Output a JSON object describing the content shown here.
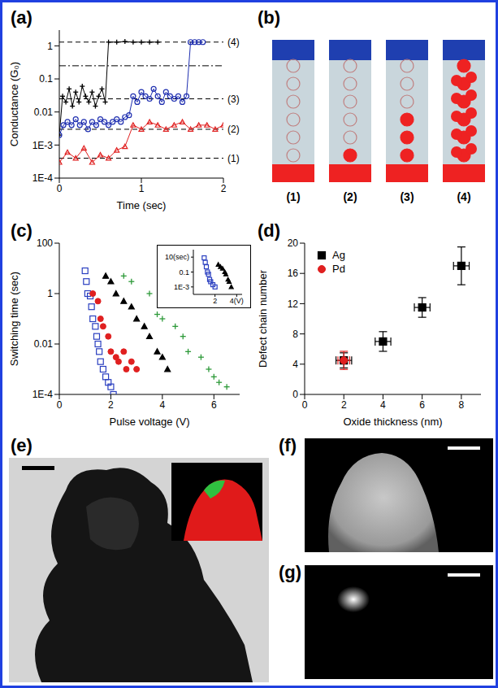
{
  "chart_data": [
    {
      "panel": "(a)",
      "type": "line",
      "x_label": "Time (sec)",
      "y_label": "Conductance (G₀)",
      "log": "y",
      "xlim": [
        0,
        2
      ],
      "xticks": [
        0,
        1,
        2
      ],
      "ylim": [
        0.0001,
        3
      ],
      "yticks": [
        {
          "value": 0.0001,
          "label": "1E-4"
        },
        {
          "value": 0.001,
          "label": "1E-3"
        },
        0.01,
        0.1,
        1
      ],
      "levels": [
        {
          "value": 0.0004,
          "label": "(1)"
        },
        {
          "value": 0.003,
          "label": "(2)"
        },
        {
          "value": 0.025,
          "label": "(3)"
        },
        {
          "value": 0.25
        },
        {
          "value": 1.3,
          "label": "(4)"
        }
      ],
      "series": [
        {
          "color": "#000000",
          "marker": "cross",
          "x": [
            0,
            0.04,
            0.08,
            0.12,
            0.16,
            0.2,
            0.24,
            0.28,
            0.32,
            0.36,
            0.4,
            0.44,
            0.48,
            0.52,
            0.56,
            0.6,
            0.7,
            0.8,
            0.9,
            1.0,
            1.1,
            1.2
          ],
          "values": [
            0.002,
            0.03,
            0.02,
            0.05,
            0.015,
            0.04,
            0.02,
            0.06,
            0.03,
            0.02,
            0.04,
            0.015,
            0.03,
            0.05,
            0.02,
            1.3,
            1.3,
            1.35,
            1.3,
            1.3,
            1.3,
            1.3
          ]
        },
        {
          "color": "#1f2fb0",
          "marker": "open_circle",
          "x": [
            0,
            0.05,
            0.1,
            0.15,
            0.2,
            0.25,
            0.3,
            0.35,
            0.4,
            0.45,
            0.5,
            0.55,
            0.6,
            0.65,
            0.7,
            0.75,
            0.8,
            0.85,
            0.9,
            0.95,
            1.0,
            1.05,
            1.1,
            1.15,
            1.2,
            1.25,
            1.3,
            1.35,
            1.4,
            1.45,
            1.5,
            1.55,
            1.6,
            1.65,
            1.7,
            1.75
          ],
          "values": [
            0.002,
            0.004,
            0.005,
            0.004,
            0.006,
            0.004,
            0.005,
            0.003,
            0.005,
            0.004,
            0.006,
            0.005,
            0.004,
            0.005,
            0.006,
            0.005,
            0.007,
            0.008,
            0.03,
            0.02,
            0.04,
            0.03,
            0.025,
            0.05,
            0.03,
            0.02,
            0.04,
            0.03,
            0.025,
            0.03,
            0.02,
            0.03,
            1.3,
            1.3,
            1.3,
            1.3
          ]
        },
        {
          "color": "#e02020",
          "marker": "open_triangle",
          "x": [
            0,
            0.1,
            0.2,
            0.3,
            0.4,
            0.5,
            0.6,
            0.7,
            0.8,
            0.9,
            1.0,
            1.1,
            1.2,
            1.3,
            1.4,
            1.5,
            1.6,
            1.7,
            1.8,
            1.9,
            2.0
          ],
          "values": [
            0.0003,
            0.0006,
            0.0004,
            0.0008,
            0.0003,
            0.0005,
            0.0004,
            0.0007,
            0.0009,
            0.004,
            0.003,
            0.005,
            0.004,
            0.003,
            0.004,
            0.005,
            0.003,
            0.004,
            0.004,
            0.003,
            0.004
          ]
        }
      ]
    },
    {
      "panel": "(c)",
      "type": "scatter",
      "x_label": "Pulse voltage (V)",
      "y_label": "Switching time (sec)",
      "log": "y",
      "xlim": [
        0,
        7
      ],
      "xticks": [
        0,
        2,
        4,
        6
      ],
      "ylim": [
        0.0001,
        100
      ],
      "yticks": [
        {
          "value": 0.0001,
          "label": "1E-4"
        },
        0.01,
        1,
        100
      ],
      "series": [
        {
          "color": "#2a3fc0",
          "marker": "open_square",
          "x": [
            1.0,
            1.05,
            1.1,
            1.2,
            1.25,
            1.3,
            1.4,
            1.45,
            1.5,
            1.55,
            1.6,
            1.7,
            1.8,
            1.9,
            2.0,
            2.1
          ],
          "values": [
            8,
            3,
            1,
            0.8,
            0.3,
            0.1,
            0.05,
            0.02,
            0.01,
            0.005,
            0.002,
            0.001,
            0.0005,
            0.0003,
            0.0002,
            0.0001
          ]
        },
        {
          "color": "#e02020",
          "marker": "circle",
          "x": [
            1.3,
            1.5,
            1.6,
            1.7,
            1.9,
            2.0,
            2.2,
            2.3,
            2.5,
            2.6,
            2.8,
            3.0
          ],
          "values": [
            1,
            0.5,
            0.1,
            0.05,
            0.02,
            0.005,
            0.003,
            0.002,
            0.005,
            0.001,
            0.002,
            0.001
          ]
        },
        {
          "color": "#000000",
          "marker": "triangle",
          "x": [
            1.8,
            2.0,
            2.2,
            2.5,
            2.8,
            3.0,
            3.3,
            3.5,
            3.8,
            4.0,
            4.2
          ],
          "values": [
            5,
            3,
            1,
            0.5,
            0.3,
            0.1,
            0.05,
            0.02,
            0.005,
            0.003,
            0.001
          ]
        },
        {
          "color": "#2e9a3a",
          "marker": "cross",
          "x": [
            2.5,
            2.8,
            3.5,
            3.8,
            4.0,
            4.5,
            4.8,
            5.0,
            5.5,
            5.8,
            6.0,
            6.2,
            6.5
          ],
          "values": [
            5,
            3,
            1,
            0.15,
            0.1,
            0.05,
            0.02,
            0.005,
            0.003,
            0.001,
            0.0005,
            0.0003,
            0.0002
          ]
        }
      ],
      "inset": {
        "type": "scatter",
        "log": "y",
        "xlim": [
          0,
          4.5
        ],
        "xticks": [
          2,
          {
            "value": 4,
            "label": "4(V)"
          }
        ],
        "ylim": [
          0.0001,
          100
        ],
        "yticks": [
          {
            "value": 0.001,
            "label": "1E-3"
          },
          0.1,
          {
            "value": 10,
            "label": "10(sec)"
          }
        ],
        "series": [
          {
            "color": "#2a3fc0",
            "marker": "open_square",
            "x": [
              1.0,
              1.1,
              1.2,
              1.3,
              1.4,
              1.5,
              1.6,
              1.8,
              2.0
            ],
            "values": [
              8,
              2,
              0.5,
              0.1,
              0.05,
              0.01,
              0.005,
              0.002,
              0.001
            ]
          },
          {
            "color": "#000000",
            "marker": "triangle",
            "x": [
              2.3,
              2.5,
              2.7,
              2.9,
              3.0,
              3.2,
              3.3,
              3.5
            ],
            "values": [
              1,
              0.5,
              0.3,
              0.1,
              0.05,
              0.01,
              0.005,
              0.001
            ]
          }
        ]
      }
    },
    {
      "panel": "(d)",
      "type": "scatter",
      "x_label": "Oxide thickness (nm)",
      "y_label": "Defect chain number",
      "xlim": [
        0,
        9
      ],
      "xticks": [
        0,
        2,
        4,
        6,
        8
      ],
      "ylim": [
        0,
        20
      ],
      "yticks": [
        0,
        4,
        8,
        12,
        16,
        20
      ],
      "legend": "upper left",
      "series": [
        {
          "name": "Ag",
          "color": "#000000",
          "marker": "square",
          "x": [
            2,
            4,
            6,
            8
          ],
          "values": [
            4.5,
            7,
            11.5,
            17
          ],
          "y_error": [
            1,
            1.3,
            1.3,
            2.5
          ],
          "x_error": [
            0.4,
            0.4,
            0.4,
            0.4
          ]
        },
        {
          "name": "Pd",
          "color": "#e02020",
          "marker": "circle",
          "x": [
            2
          ],
          "values": [
            4.5
          ],
          "y_error": [
            1.2
          ],
          "x_error": [
            0.3
          ]
        }
      ]
    }
  ],
  "diagram": {
    "panel": "(b)",
    "stages": [
      {
        "label": "(1)",
        "filled": 0
      },
      {
        "label": "(2)",
        "filled": 1
      },
      {
        "label": "(3)",
        "filled": 3
      },
      {
        "label": "(4)",
        "filled": 6
      }
    ]
  },
  "images": [
    {
      "panel": "(e)"
    },
    {
      "panel": "(f)"
    },
    {
      "panel": "(g)"
    }
  ]
}
